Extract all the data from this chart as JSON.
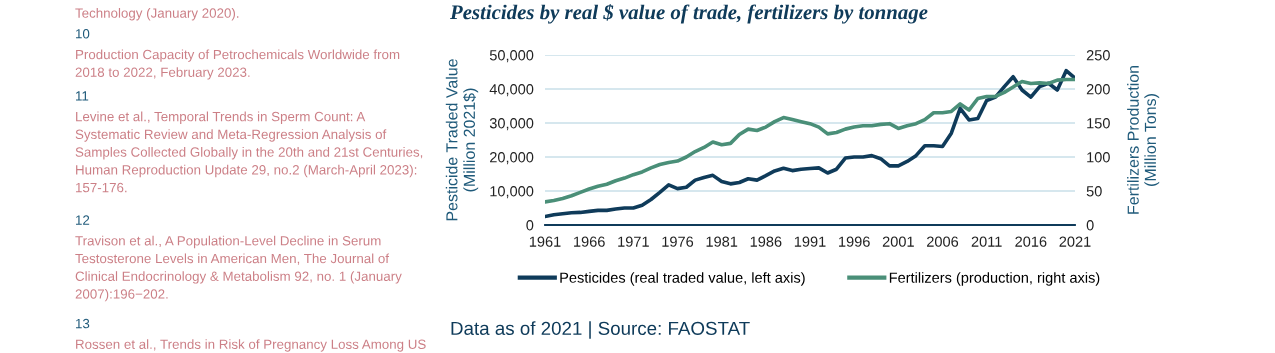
{
  "chart_data": {
    "type": "line",
    "title": "Pesticides by real $ value of trade, fertilizers by tonnage",
    "ylabel": "Pesticide Traded Value\n(Million 2021$)",
    "y2label": "Fertilizers Production\n(Million Tons)",
    "x": [
      1961,
      1962,
      1963,
      1964,
      1965,
      1966,
      1967,
      1968,
      1969,
      1970,
      1971,
      1972,
      1973,
      1974,
      1975,
      1976,
      1977,
      1978,
      1979,
      1980,
      1981,
      1982,
      1983,
      1984,
      1985,
      1986,
      1987,
      1988,
      1989,
      1990,
      1991,
      1992,
      1993,
      1994,
      1995,
      1996,
      1997,
      1998,
      1999,
      2000,
      2001,
      2002,
      2003,
      2004,
      2005,
      2006,
      2007,
      2008,
      2009,
      2010,
      2011,
      2012,
      2013,
      2014,
      2015,
      2016,
      2017,
      2018,
      2019,
      2020,
      2021
    ],
    "series": [
      {
        "name": "Pesticides (real traded value, left axis)",
        "color": "#0f3b5a",
        "values": [
          2500,
          3000,
          3300,
          3600,
          3700,
          4000,
          4300,
          4300,
          4700,
          5000,
          5000,
          5800,
          7500,
          9600,
          11800,
          10700,
          11100,
          13200,
          14000,
          14600,
          12800,
          12100,
          12500,
          13600,
          13200,
          14500,
          15900,
          16700,
          16000,
          16400,
          16600,
          16800,
          15300,
          16400,
          19700,
          20000,
          20000,
          20400,
          19500,
          17400,
          17400,
          18700,
          20400,
          23300,
          23300,
          23100,
          27000,
          34300,
          30900,
          31300,
          36600,
          37600,
          40700,
          43600,
          39700,
          37600,
          40700,
          41700,
          39700,
          45400,
          43200
        ]
      },
      {
        "name": "Fertilizers (production, right axis)",
        "color": "#4a8f78",
        "axis": "y2",
        "values": [
          34,
          36,
          39,
          43,
          48,
          53,
          57,
          60,
          65,
          69,
          74,
          78,
          84,
          89,
          92,
          94,
          100,
          108,
          114,
          122,
          118,
          120,
          133,
          141,
          139,
          144,
          152,
          158,
          155,
          152,
          149,
          144,
          134,
          136,
          141,
          144,
          146,
          146,
          148,
          149,
          142,
          146,
          149,
          155,
          165,
          165,
          167,
          178,
          169,
          186,
          189,
          189,
          195,
          203,
          211,
          208,
          209,
          208,
          213,
          214,
          214
        ]
      }
    ],
    "xlim": [
      1961,
      2021
    ],
    "xticks": [
      1961,
      1966,
      1971,
      1976,
      1981,
      1986,
      1991,
      1996,
      2001,
      2006,
      2011,
      2016,
      2021
    ],
    "ylim": [
      0,
      50000
    ],
    "yticks": [
      0,
      {
        "value": 10000,
        "label": "10,000"
      },
      {
        "value": 20000,
        "label": "20,000"
      },
      {
        "value": 30000,
        "label": "30,000"
      },
      {
        "value": 40000,
        "label": "40,000"
      },
      {
        "value": 50000,
        "label": "50,000"
      }
    ],
    "y2lim": [
      0,
      250
    ],
    "y2ticks": [
      0,
      50,
      100,
      150,
      200,
      250
    ],
    "grid": "y",
    "legend": "bottom",
    "marker": "none",
    "line_style": "solid",
    "annotations": [
      "Technology (January 2020).",
      "10",
      "Production Capacity of Petrochemicals Worldwide from\n2018 to 2022, February 2023.",
      "11",
      "Levine et al., Temporal Trends in Sperm Count: A\nSystematic Review and Meta-Regression Analysis of\nSamples Collected Globally in the 20th and 21st Centuries,\nHuman Reproduction Update 29, no.2 (March-April 2023):\n157-176.",
      "12",
      "Travison et al., A Population-Level Decline in Serum\nTestosterone Levels in American Men, The Journal of\nClinical Endocrinology & Metabolism 92, no. 1 (January\n2007):196−202.",
      "13",
      "Rossen et al., Trends in Risk of Pregnancy Loss Among US",
      "Data as of 2021 | Source: FAOSTAT"
    ]
  }
}
